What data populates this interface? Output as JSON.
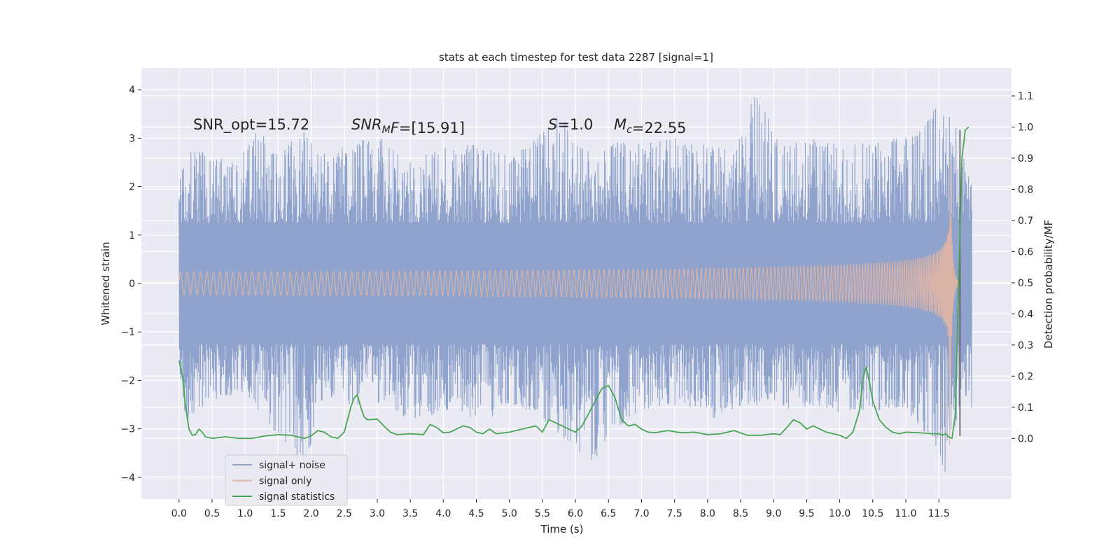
{
  "chart_data": {
    "type": "line",
    "title": "stats at each timestep for test data 2287 [signal=1]",
    "xlabel": "Time (s)",
    "ylabel": "Whitened strain",
    "y2label": "Detection probability/MF",
    "xlim": [
      -0.57,
      12.6
    ],
    "ylim": [
      -4.45,
      4.45
    ],
    "y2lim": [
      -0.195,
      1.19
    ],
    "x_ticks": [
      "0.0",
      "0.5",
      "1.0",
      "1.5",
      "2.0",
      "2.5",
      "3.0",
      "3.5",
      "4.0",
      "4.5",
      "5.0",
      "5.5",
      "6.0",
      "6.5",
      "7.0",
      "7.5",
      "8.0",
      "8.5",
      "9.0",
      "9.5",
      "10.0",
      "10.5",
      "11.0",
      "11.5"
    ],
    "y_ticks": [
      "4",
      "3",
      "2",
      "1",
      "0",
      "−1",
      "−2",
      "−3",
      "−4"
    ],
    "y2_ticks": [
      "1.1",
      "1.0",
      "0.9",
      "0.8",
      "0.7",
      "0.6",
      "0.5",
      "0.4",
      "0.3",
      "0.2",
      "0.1",
      "0.0"
    ],
    "grid": true,
    "legend_position": "lower-left",
    "annotations": [
      {
        "name": "snr-opt",
        "text": "SNR_opt=15.72"
      },
      {
        "name": "snr-mf",
        "text": "SNR_MF=[15.91]",
        "pre": "SNR",
        "sub": "M",
        "post": "F=[15.91]"
      },
      {
        "name": "s-value",
        "text": "S=1.0",
        "pre": "S",
        "post": "=1.0"
      },
      {
        "name": "chirp-mass",
        "text": "M_c=22.55",
        "pre": "M",
        "sub": "c",
        "post": "=22.55"
      }
    ],
    "series": [
      {
        "name": "signal+ noise",
        "color": "#8fa3cc",
        "duration": 12.0,
        "envelope_max": [
          [
            0.0,
            2.1
          ],
          [
            0.1,
            2.7
          ],
          [
            0.4,
            2.85
          ],
          [
            0.6,
            2.6
          ],
          [
            0.9,
            2.6
          ],
          [
            1.2,
            3.2
          ],
          [
            1.5,
            2.65
          ],
          [
            1.9,
            3.2
          ],
          [
            2.2,
            2.7
          ],
          [
            2.7,
            2.95
          ],
          [
            3.1,
            3.05
          ],
          [
            3.6,
            2.6
          ],
          [
            4.0,
            2.8
          ],
          [
            4.5,
            2.9
          ],
          [
            5.0,
            2.65
          ],
          [
            5.3,
            2.9
          ],
          [
            5.8,
            3.55
          ],
          [
            6.2,
            2.75
          ],
          [
            6.5,
            2.95
          ],
          [
            7.0,
            2.9
          ],
          [
            7.5,
            3.0
          ],
          [
            8.0,
            2.95
          ],
          [
            8.4,
            2.75
          ],
          [
            8.7,
            4.05
          ],
          [
            9.1,
            2.9
          ],
          [
            9.5,
            3.0
          ],
          [
            10.0,
            2.95
          ],
          [
            10.5,
            2.9
          ],
          [
            11.0,
            3.05
          ],
          [
            11.55,
            3.75
          ],
          [
            11.75,
            3.35
          ],
          [
            12.0,
            2.0
          ]
        ],
        "envelope_min": [
          [
            0.0,
            -1.85
          ],
          [
            0.1,
            -2.9
          ],
          [
            0.5,
            -2.4
          ],
          [
            1.0,
            -2.3
          ],
          [
            1.3,
            -2.9
          ],
          [
            1.9,
            -3.8
          ],
          [
            2.2,
            -2.3
          ],
          [
            2.6,
            -2.55
          ],
          [
            3.0,
            -2.5
          ],
          [
            3.6,
            -2.9
          ],
          [
            4.2,
            -2.6
          ],
          [
            4.55,
            -2.9
          ],
          [
            5.0,
            -2.55
          ],
          [
            5.6,
            -2.9
          ],
          [
            6.2,
            -3.85
          ],
          [
            6.55,
            -3.1
          ],
          [
            7.0,
            -2.6
          ],
          [
            7.6,
            -2.5
          ],
          [
            8.1,
            -2.85
          ],
          [
            8.6,
            -2.5
          ],
          [
            9.1,
            -2.6
          ],
          [
            9.5,
            -2.55
          ],
          [
            10.0,
            -2.7
          ],
          [
            10.5,
            -2.65
          ],
          [
            11.0,
            -2.6
          ],
          [
            11.45,
            -3.35
          ],
          [
            11.6,
            -4.1
          ],
          [
            11.8,
            -2.6
          ],
          [
            12.0,
            -2.6
          ]
        ],
        "core": 1.25
      },
      {
        "name": "signal only",
        "color": "#e0b4a4",
        "model": "chirp",
        "merger_time": 11.66,
        "end_time": 11.8,
        "peak_amplitude": 3.6
      },
      {
        "name": "signal statistics",
        "color": "#4aa555",
        "axis": "right",
        "x": [
          0.0,
          0.05,
          0.1,
          0.15,
          0.2,
          0.25,
          0.3,
          0.35,
          0.4,
          0.5,
          0.7,
          0.9,
          1.1,
          1.3,
          1.5,
          1.7,
          1.9,
          2.0,
          2.1,
          2.2,
          2.3,
          2.4,
          2.5,
          2.6,
          2.65,
          2.7,
          2.75,
          2.8,
          2.85,
          2.9,
          3.0,
          3.1,
          3.2,
          3.3,
          3.5,
          3.7,
          3.8,
          3.9,
          4.0,
          4.1,
          4.3,
          4.4,
          4.5,
          4.6,
          4.7,
          4.8,
          5.0,
          5.2,
          5.4,
          5.5,
          5.6,
          5.7,
          5.8,
          6.0,
          6.1,
          6.2,
          6.3,
          6.4,
          6.5,
          6.6,
          6.7,
          6.8,
          6.9,
          7.0,
          7.1,
          7.2,
          7.4,
          7.6,
          7.8,
          8.0,
          8.2,
          8.4,
          8.6,
          8.8,
          9.0,
          9.1,
          9.2,
          9.3,
          9.4,
          9.5,
          9.6,
          9.8,
          10.0,
          10.1,
          10.2,
          10.3,
          10.35,
          10.4,
          10.45,
          10.5,
          10.6,
          10.7,
          10.8,
          10.9,
          11.0,
          11.2,
          11.4,
          11.5,
          11.55,
          11.6,
          11.65,
          11.7,
          11.75,
          11.8,
          11.85,
          11.9,
          11.95
        ],
        "y": [
          0.25,
          0.2,
          0.1,
          0.03,
          0.01,
          0.012,
          0.03,
          0.02,
          0.005,
          0.0,
          0.005,
          0.0,
          0.0,
          0.008,
          0.012,
          0.01,
          0.0,
          0.008,
          0.025,
          0.02,
          0.005,
          0.0,
          0.02,
          0.1,
          0.13,
          0.14,
          0.1,
          0.07,
          0.06,
          0.06,
          0.062,
          0.04,
          0.02,
          0.012,
          0.015,
          0.012,
          0.045,
          0.035,
          0.018,
          0.02,
          0.04,
          0.035,
          0.02,
          0.015,
          0.03,
          0.015,
          0.02,
          0.03,
          0.04,
          0.02,
          0.06,
          0.05,
          0.04,
          0.02,
          0.04,
          0.08,
          0.12,
          0.16,
          0.17,
          0.13,
          0.06,
          0.04,
          0.045,
          0.03,
          0.02,
          0.018,
          0.025,
          0.018,
          0.02,
          0.012,
          0.015,
          0.025,
          0.01,
          0.01,
          0.015,
          0.012,
          0.035,
          0.06,
          0.05,
          0.03,
          0.04,
          0.02,
          0.01,
          0.0,
          0.02,
          0.09,
          0.19,
          0.23,
          0.18,
          0.12,
          0.06,
          0.035,
          0.02,
          0.015,
          0.02,
          0.018,
          0.015,
          0.015,
          0.01,
          0.015,
          0.005,
          0.0,
          0.08,
          0.5,
          0.9,
          0.99,
          1.0
        ]
      }
    ],
    "vertical_lines": [
      {
        "x": 11.82,
        "y_from": -3.15,
        "y_to": 3.17,
        "color": "#555555"
      }
    ]
  }
}
